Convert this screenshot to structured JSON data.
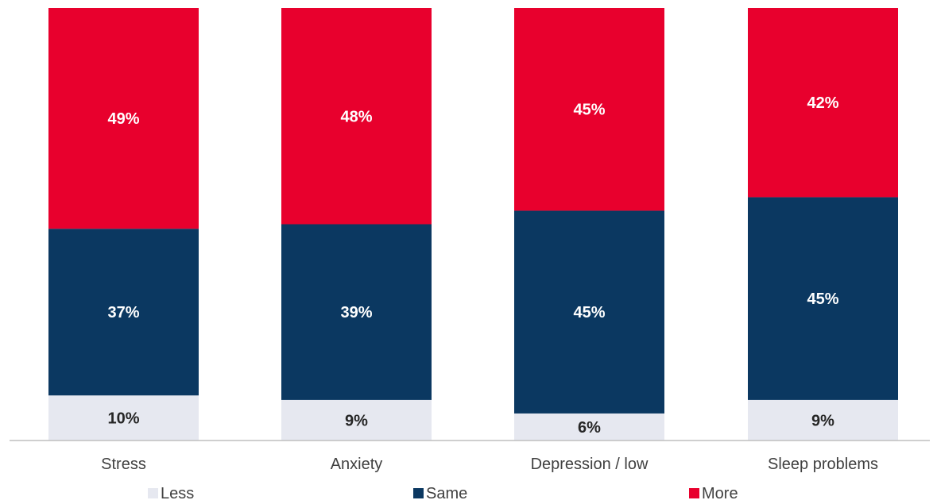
{
  "chart_data": {
    "type": "bar",
    "stacked": true,
    "categories": [
      "Stress",
      "Anxiety",
      "Depression / low",
      "Sleep problems"
    ],
    "series": [
      {
        "name": "Less",
        "values": [
          10,
          9,
          6,
          9
        ],
        "labels": [
          "10%",
          "9%",
          "6%",
          "9%"
        ],
        "color": "#e6e8f0",
        "label_color": "#262626"
      },
      {
        "name": "Same",
        "values": [
          37,
          39,
          45,
          45
        ],
        "labels": [
          "37%",
          "39%",
          "45%",
          "45%"
        ],
        "color": "#0b3861",
        "label_color": "#ffffff"
      },
      {
        "name": "More",
        "values": [
          49,
          48,
          45,
          42
        ],
        "labels": [
          "49%",
          "48%",
          "45%",
          "42%"
        ],
        "color": "#e8002d",
        "label_color": "#ffffff"
      }
    ],
    "title": "",
    "xlabel": "",
    "ylabel": "",
    "ylim": [
      0,
      96
    ],
    "grid": false,
    "legend": "bottom"
  }
}
